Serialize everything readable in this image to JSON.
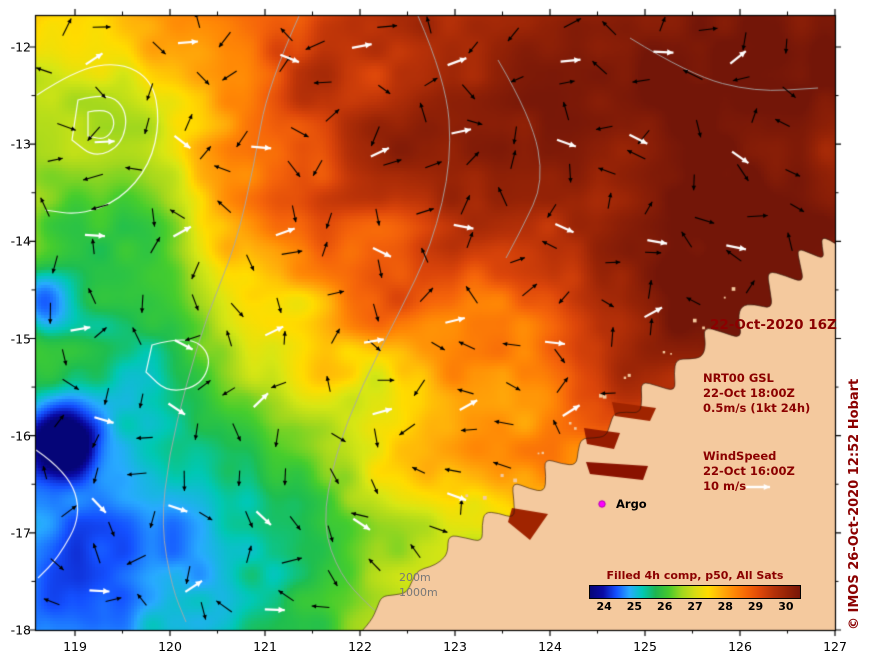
{
  "axes": {
    "x_tick_labels": [
      "119",
      "120",
      "121",
      "122",
      "123",
      "124",
      "125",
      "126",
      "127"
    ],
    "y_tick_labels": [
      "-12",
      "-13",
      "-14",
      "-15",
      "-16",
      "-17",
      "-18"
    ]
  },
  "annotations": {
    "datetime": "22-Oct-2020 16Z",
    "gsl_title": "NRT00 GSL",
    "gsl_time": "22-Oct 18:00Z",
    "gsl_scale": "0.5m/s (1kt 24h)",
    "wind_title": "WindSpeed",
    "wind_time": "22-Oct 16:00Z",
    "wind_scale": "10 m/s",
    "argo_label": "Argo",
    "depth_label_1": "200m",
    "depth_label_2": "1000m",
    "credit": "© IMOS 26-Oct-2020 12:52 Hobart"
  },
  "colorbar": {
    "title": "Filled 4h comp, p50, All Sats",
    "tick_labels": [
      "24",
      "25",
      "26",
      "27",
      "28",
      "29",
      "30"
    ],
    "gradient_colors": [
      "#050578",
      "#0a0aa5",
      "#1450ff",
      "#28aaff",
      "#00c8b4",
      "#1eb450",
      "#46c82d",
      "#a0d71e",
      "#d7dc14",
      "#ffdc00",
      "#ffaf0a",
      "#ff8705",
      "#f56405",
      "#dc4608",
      "#b43208",
      "#962306",
      "#781608"
    ]
  },
  "colors": {
    "land": "#f4c99e",
    "annotation_red": "#8b0000",
    "argo_marker": "#ff00ff",
    "depth_label_gray": "#787878",
    "contour_gray": "#a8a8a8",
    "contour_white": "#ffffff"
  },
  "chart_data": {
    "type": "heatmap",
    "title": "Filled 4h comp, p50, All Sats",
    "x_ticks": [
      119,
      120,
      121,
      122,
      123,
      124,
      125,
      126,
      127
    ],
    "y_ticks": [
      -12,
      -13,
      -14,
      -15,
      -16,
      -17,
      -18
    ],
    "x_range": [
      118.58,
      127.0
    ],
    "y_range": [
      -18.0,
      -11.85
    ],
    "value_range_degC": [
      24,
      30
    ],
    "valid_time": "22-Oct-2020 16Z",
    "legend": {
      "current_vectors": "NRT00 GSL 22-Oct 18:00Z, scale 0.5m/s (1kt 24h), black arrows",
      "wind_vectors": "WindSpeed 22-Oct 16:00Z, scale 10 m/s, white arrows",
      "bathymetry_contours": [
        "200m",
        "1000m"
      ],
      "argo_marker": "Argo float position, magenta dot near 124.6E 16.9S"
    },
    "field_samples": [
      {
        "lon": 126.5,
        "lat": -12.3,
        "sst_degC": 30.3
      },
      {
        "lon": 123.0,
        "lat": -12.5,
        "sst_degC": 30.0
      },
      {
        "lon": 122.0,
        "lat": -14.5,
        "sst_degC": 29.0
      },
      {
        "lon": 124.5,
        "lat": -15.0,
        "sst_degC": 29.8
      },
      {
        "lon": 121.5,
        "lat": -16.5,
        "sst_degC": 28.0
      },
      {
        "lon": 120.0,
        "lat": -17.0,
        "sst_degC": 27.0
      },
      {
        "lon": 119.5,
        "lat": -12.8,
        "sst_degC": 27.5
      },
      {
        "lon": 119.2,
        "lat": -16.3,
        "sst_degC": 24.3
      }
    ]
  }
}
